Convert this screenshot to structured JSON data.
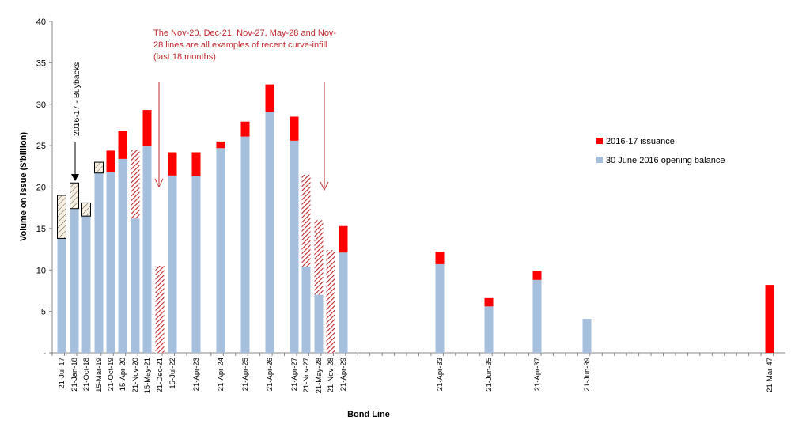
{
  "chart_data": {
    "type": "bar",
    "stacked": true,
    "xlabel": "Bond Line",
    "ylabel": "Volume on issue ($'billion)",
    "ylim": [
      0,
      40
    ],
    "yticks": [
      0,
      5,
      10,
      15,
      20,
      25,
      30,
      35,
      40
    ],
    "ytick_labels": [
      "-",
      "5",
      "10",
      "15",
      "20",
      "25",
      "30",
      "35",
      "40"
    ],
    "grid": false,
    "legend_position": "right",
    "colors": {
      "issuance": "#ff0000",
      "opening": "#a5bfdd",
      "hatch_red": "#c0272d",
      "buyback": "#000000"
    },
    "legend": [
      {
        "name": "2016-17 issuance",
        "color": "#ff0000"
      },
      {
        "name": "30 June 2016 opening balance",
        "color": "#a5bfdd"
      }
    ],
    "bars": [
      {
        "label": "21-Jul-17",
        "opening": 13.8,
        "issuance": 0,
        "buyback": 5.2,
        "infill": 0
      },
      {
        "label": "21-Jan-18",
        "opening": 17.4,
        "issuance": 0,
        "buyback": 3.1,
        "infill": 0
      },
      {
        "label": "21-Oct-18",
        "opening": 16.5,
        "issuance": 0,
        "buyback": 1.6,
        "infill": 0
      },
      {
        "label": "15-Mar-19",
        "opening": 21.7,
        "issuance": 0,
        "buyback": 1.3,
        "infill": 0
      },
      {
        "label": "21-Oct-19",
        "opening": 21.8,
        "issuance": 2.6,
        "buyback": 0,
        "infill": 0
      },
      {
        "label": "15-Apr-20",
        "opening": 23.4,
        "issuance": 3.4,
        "buyback": 0,
        "infill": 0
      },
      {
        "label": "21-Nov-20",
        "opening": 16.2,
        "issuance": 0,
        "buyback": 0,
        "infill": 8.3
      },
      {
        "label": "15-May-21",
        "opening": 25.0,
        "issuance": 4.3,
        "buyback": 0,
        "infill": 0
      },
      {
        "label": "21-Dec-21",
        "opening": 0,
        "issuance": 0,
        "buyback": 0,
        "infill": 10.5
      },
      {
        "label": "15-Jul-22",
        "opening": 21.4,
        "issuance": 2.8,
        "buyback": 0,
        "infill": 0
      },
      {
        "label": "21-Apr-23",
        "opening": 21.3,
        "issuance": 2.9,
        "buyback": 0,
        "infill": 0
      },
      {
        "label": "21-Apr-24",
        "opening": 24.7,
        "issuance": 0.8,
        "buyback": 0,
        "infill": 0
      },
      {
        "label": "21-Apr-25",
        "opening": 26.1,
        "issuance": 1.8,
        "buyback": 0,
        "infill": 0
      },
      {
        "label": "21-Apr-26",
        "opening": 29.1,
        "issuance": 3.3,
        "buyback": 0,
        "infill": 0
      },
      {
        "label": "21-Apr-27",
        "opening": 25.6,
        "issuance": 2.9,
        "buyback": 0,
        "infill": 0
      },
      {
        "label": "21-Nov-27",
        "opening": 10.4,
        "issuance": 0,
        "buyback": 0,
        "infill": 11.1
      },
      {
        "label": "21-May-28",
        "opening": 7.0,
        "issuance": 0,
        "buyback": 0,
        "infill": 9.0
      },
      {
        "label": "21-Nov-28",
        "opening": 0,
        "issuance": 0,
        "buyback": 0,
        "infill": 12.4
      },
      {
        "label": "21-Apr-29",
        "opening": 12.1,
        "issuance": 3.2,
        "buyback": 0,
        "infill": 0
      },
      {
        "label": "21-Apr-33",
        "opening": 10.7,
        "issuance": 1.5,
        "buyback": 0,
        "infill": 0
      },
      {
        "label": "21-Jun-35",
        "opening": 5.6,
        "issuance": 1.0,
        "buyback": 0,
        "infill": 0
      },
      {
        "label": "21-Apr-37",
        "opening": 8.8,
        "issuance": 1.1,
        "buyback": 0,
        "infill": 0
      },
      {
        "label": "21-Jun-39",
        "opening": 4.1,
        "issuance": 0,
        "buyback": 0,
        "infill": 0
      },
      {
        "label": "21-Mar-47",
        "opening": 0,
        "issuance": 8.2,
        "buyback": 0,
        "infill": 0
      }
    ],
    "annotations": {
      "buyback_text": "2016-17 - Buybacks",
      "infill_lines": [
        "The Nov-20, Dec-21, Nov-27, May-28 and Nov-",
        "28 lines are all examples of recent curve-infill",
        "(last 18 months)"
      ]
    }
  }
}
